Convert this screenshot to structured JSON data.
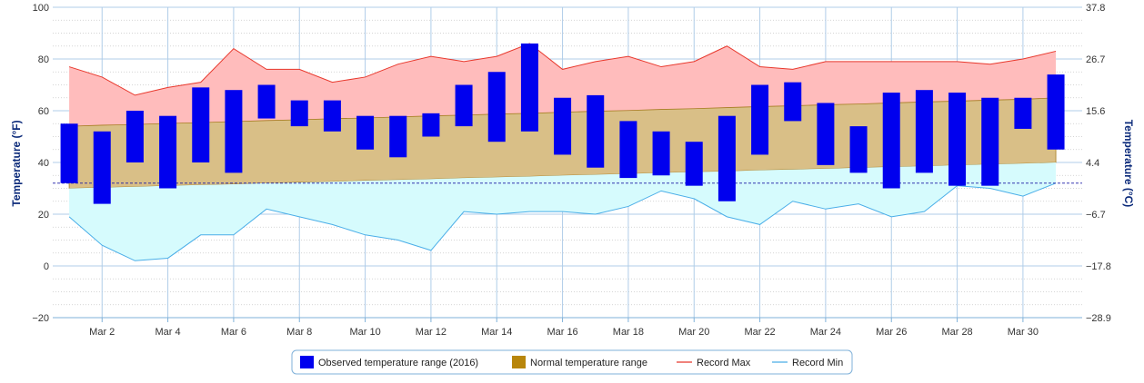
{
  "chart_data": {
    "type": "range-bar-area",
    "y_axis_left": {
      "title": "Temperature (°F)",
      "ticks": [
        100,
        80,
        60,
        40,
        20,
        0,
        -20
      ],
      "tick_labels": [
        "100",
        "80",
        "60",
        "40",
        "20",
        "0",
        "−20"
      ],
      "ylim": [
        -20,
        100
      ]
    },
    "y_axis_right": {
      "title": "Temperature (°C)",
      "ticks": [
        37.8,
        26.7,
        15.6,
        4.4,
        -6.7,
        -17.8,
        -28.9
      ],
      "tick_labels": [
        "37.8",
        "26.7",
        "15.6",
        "4.4",
        "−6.7",
        "−17.8",
        "−28.9"
      ]
    },
    "x_axis": {
      "tick_days": [
        2,
        4,
        6,
        8,
        10,
        12,
        14,
        16,
        18,
        20,
        22,
        24,
        26,
        28,
        30
      ],
      "tick_labels": [
        "Mar 2",
        "Mar 4",
        "Mar 6",
        "Mar 8",
        "Mar 10",
        "Mar 12",
        "Mar 14",
        "Mar 16",
        "Mar 18",
        "Mar 20",
        "Mar 22",
        "Mar 24",
        "Mar 26",
        "Mar 28",
        "Mar 30"
      ]
    },
    "days": [
      1,
      2,
      3,
      4,
      5,
      6,
      7,
      8,
      9,
      10,
      11,
      12,
      13,
      14,
      15,
      16,
      17,
      18,
      19,
      20,
      21,
      22,
      23,
      24,
      25,
      26,
      27,
      28,
      29,
      30,
      31
    ],
    "freezing_line": 32,
    "series": [
      {
        "name": "Observed temperature range (2016)",
        "color": "#0000ee",
        "low": [
          32,
          24,
          40,
          30,
          40,
          36,
          57,
          54,
          52,
          45,
          42,
          50,
          54,
          48,
          52,
          43,
          38,
          34,
          35,
          31,
          25,
          43,
          56,
          39,
          36,
          30,
          36,
          31,
          31,
          53,
          45
        ],
        "high": [
          55,
          52,
          60,
          58,
          69,
          68,
          70,
          64,
          64,
          58,
          58,
          59,
          70,
          75,
          86,
          65,
          66,
          56,
          52,
          48,
          58,
          70,
          71,
          63,
          54,
          67,
          68,
          67,
          65,
          65,
          74
        ]
      },
      {
        "name": "Normal temperature range",
        "color": "#b8860b",
        "low": [
          30,
          30.3,
          30.6,
          31,
          31.3,
          31.6,
          32,
          32.3,
          32.6,
          33,
          33.3,
          33.6,
          34,
          34.3,
          34.6,
          35,
          35.3,
          35.6,
          36,
          36.3,
          36.6,
          37,
          37.3,
          37.6,
          38,
          38.3,
          38.6,
          39,
          39.3,
          39.6,
          40
        ],
        "high": [
          54,
          54.4,
          54.7,
          55.1,
          55.4,
          55.8,
          56.2,
          56.5,
          56.9,
          57.2,
          57.6,
          58,
          58.3,
          58.7,
          59,
          59.4,
          59.8,
          60.1,
          60.5,
          60.8,
          61.2,
          61.6,
          61.9,
          62.3,
          62.6,
          63,
          63.4,
          63.7,
          64.1,
          64.4,
          65
        ]
      },
      {
        "name": "Record Max",
        "color": "#e8382c",
        "values": [
          77,
          73,
          66,
          69,
          71,
          84,
          76,
          76,
          71,
          73,
          78,
          81,
          79,
          81,
          86,
          76,
          79,
          81,
          77,
          79,
          85,
          77,
          76,
          79,
          79,
          79,
          79,
          79,
          78,
          80,
          83
        ]
      },
      {
        "name": "Record Min",
        "color": "#4aaee8",
        "values": [
          19,
          8,
          2,
          3,
          12,
          12,
          22,
          19,
          16,
          12,
          10,
          6,
          21,
          20,
          21,
          21,
          20,
          23,
          29,
          26,
          19,
          16,
          25,
          22,
          24,
          19,
          21,
          31,
          30,
          27,
          32
        ]
      }
    ],
    "colors": {
      "record_fill": "#ffbcbc",
      "normal_fill": "#d9bf87",
      "record_min_fill": "#d6fbfd",
      "grid": "#b0cde8",
      "freezing_line": "#1a1aa6"
    }
  },
  "legend": {
    "items": [
      {
        "label": "Observed temperature range (2016)",
        "swatch": "#0000ee",
        "kind": "box"
      },
      {
        "label": "Normal temperature range",
        "swatch": "#b8860b",
        "kind": "box"
      },
      {
        "label": "Record Max",
        "swatch": "#e8382c",
        "kind": "line"
      },
      {
        "label": "Record Min",
        "swatch": "#4aaee8",
        "kind": "line"
      }
    ]
  }
}
